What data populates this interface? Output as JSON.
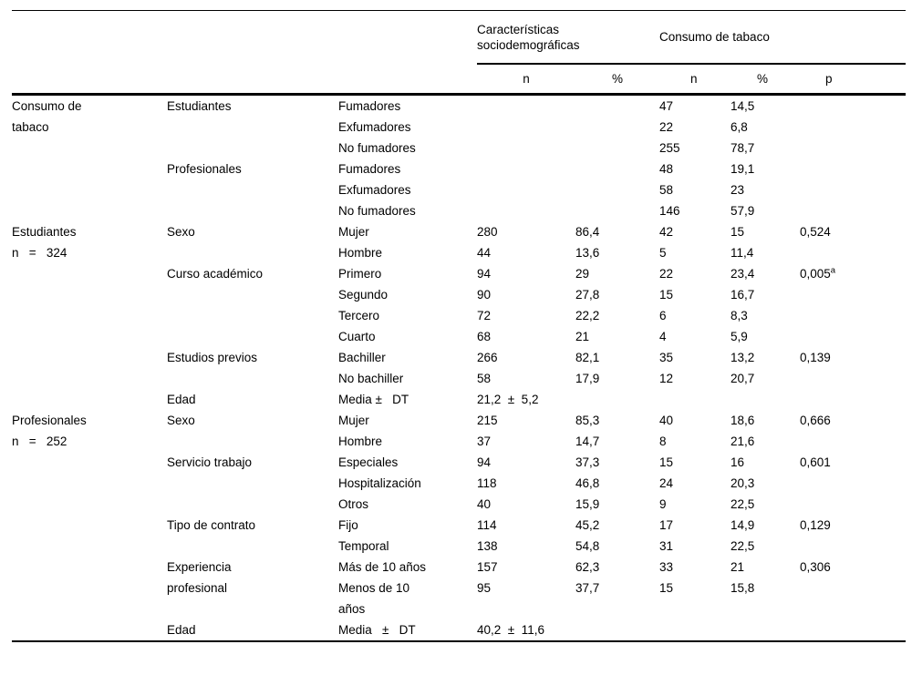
{
  "colors": {
    "background": "#ffffff",
    "text": "#000000",
    "rule": "#000000"
  },
  "table": {
    "group_headers": {
      "sociodemographic": "Características\nsociodemográficas",
      "tobacco": "Consumo de tabaco"
    },
    "sub_headers": [
      "n",
      "%",
      "n",
      "%",
      "p"
    ],
    "rows": [
      {
        "c1": "Consumo de\ntabaco",
        "c1s": 6,
        "c2": "Estudiantes",
        "c2s": 3,
        "c3": "Fumadores",
        "n1": "",
        "p1": "",
        "n2": "47",
        "p2": "14,5",
        "p": ""
      },
      {
        "c3": "Exfumadores",
        "n1": "",
        "p1": "",
        "n2": "22",
        "p2": "6,8",
        "p": ""
      },
      {
        "c3": "No fumadores",
        "n1": "",
        "p1": "",
        "n2": "255",
        "p2": "78,7",
        "p": ""
      },
      {
        "c2": "Profesionales",
        "c2s": 3,
        "c3": "Fumadores",
        "n1": "",
        "p1": "",
        "n2": "48",
        "p2": "19,1",
        "p": ""
      },
      {
        "c3": "Exfumadores",
        "n1": "",
        "p1": "",
        "n2": "58",
        "p2": "23",
        "p": ""
      },
      {
        "c3": "No fumadores",
        "n1": "",
        "p1": "",
        "n2": "146",
        "p2": "57,9",
        "p": ""
      },
      {
        "c1": "Estudiantes\nn   =   324",
        "c1s": 9,
        "c2": "Sexo",
        "c2s": 2,
        "c3": "Mujer",
        "n1": "280",
        "p1": "86,4",
        "n2": "42",
        "p2": "15",
        "p": "0,524"
      },
      {
        "c3": "Hombre",
        "n1": "44",
        "p1": "13,6",
        "n2": "5",
        "p2": "11,4",
        "p": ""
      },
      {
        "c2": "Curso académico",
        "c2s": 4,
        "c3": "Primero",
        "n1": "94",
        "p1": "29",
        "n2": "22",
        "p2": "23,4",
        "p": "0,005",
        "psup": "a"
      },
      {
        "c3": "Segundo",
        "n1": "90",
        "p1": "27,8",
        "n2": "15",
        "p2": "16,7",
        "p": ""
      },
      {
        "c3": "Tercero",
        "n1": "72",
        "p1": "22,2",
        "n2": "6",
        "p2": "8,3",
        "p": ""
      },
      {
        "c3": "Cuarto",
        "n1": "68",
        "p1": "21",
        "n2": "4",
        "p2": "5,9",
        "p": ""
      },
      {
        "c2": "Estudios previos",
        "c2s": 2,
        "c3": "Bachiller",
        "n1": "266",
        "p1": "82,1",
        "n2": "35",
        "p2": "13,2",
        "p": "0,139"
      },
      {
        "c3": "No bachiller",
        "n1": "58",
        "p1": "17,9",
        "n2": "12",
        "p2": "20,7",
        "p": ""
      },
      {
        "c2": "Edad",
        "c2s": 1,
        "c3": "Media ±   DT",
        "stat": "21,2  ±  5,2",
        "n2": "",
        "p2": "",
        "p": ""
      },
      {
        "c1": "Profesionales\nn   =   252",
        "c1s": 10,
        "c2": "Sexo",
        "c2s": 2,
        "c3": "Mujer",
        "n1": "215",
        "p1": "85,3",
        "n2": "40",
        "p2": "18,6",
        "p": "0,666"
      },
      {
        "c3": "Hombre",
        "n1": "37",
        "p1": "14,7",
        "n2": "8",
        "p2": "21,6",
        "p": ""
      },
      {
        "c2": "Servicio trabajo",
        "c2s": 3,
        "c3": "Especiales",
        "n1": "94",
        "p1": "37,3",
        "n2": "15",
        "p2": "16",
        "p": "0,601"
      },
      {
        "c3": "Hospitalización",
        "n1": "118",
        "p1": "46,8",
        "n2": "24",
        "p2": "20,3",
        "p": ""
      },
      {
        "c3": "Otros",
        "n1": "40",
        "p1": "15,9",
        "n2": "9",
        "p2": "22,5",
        "p": ""
      },
      {
        "c2": "Tipo de contrato",
        "c2s": 2,
        "c3": "Fijo",
        "n1": "114",
        "p1": "45,2",
        "n2": "17",
        "p2": "14,9",
        "p": "0,129"
      },
      {
        "c3": "Temporal",
        "n1": "138",
        "p1": "54,8",
        "n2": "31",
        "p2": "22,5",
        "p": ""
      },
      {
        "c2": "Experiencia\nprofesional",
        "c2s": 2,
        "c3": "Más de 10 años",
        "n1": "157",
        "p1": "62,3",
        "n2": "33",
        "p2": "21",
        "p": "0,306"
      },
      {
        "c3": "Menos de 10\naños",
        "n1": "95",
        "p1": "37,7",
        "n2": "15",
        "p2": "15,8",
        "p": ""
      },
      {
        "c2": "Edad",
        "c2s": 1,
        "c3": "Media   ±   DT",
        "stat": "40,2  ±  11,6",
        "n2": "",
        "p2": "",
        "p": ""
      }
    ]
  }
}
